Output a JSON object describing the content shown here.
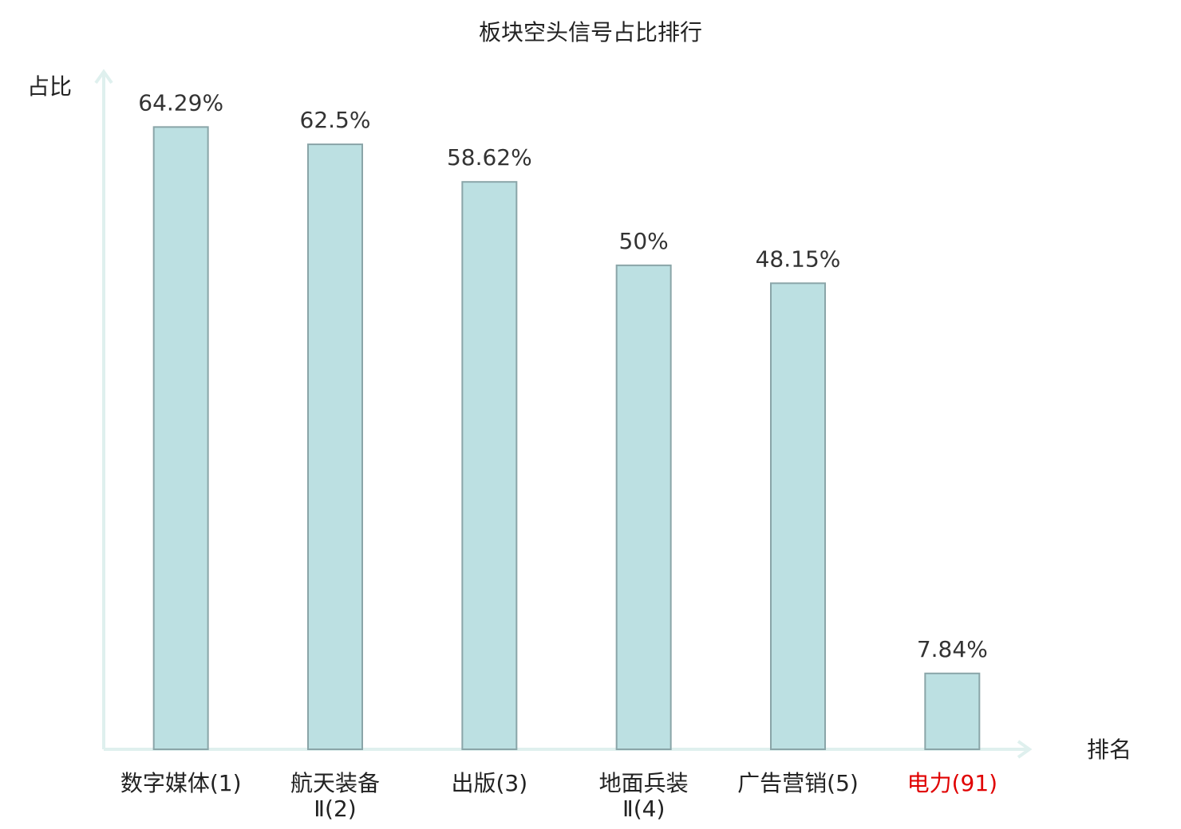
{
  "chart_data": {
    "type": "bar",
    "title": "板块空头信号占比排行",
    "y_label": "占比",
    "x_label": "排名",
    "categories": [
      [
        "数字媒体(1)"
      ],
      [
        "航天装备",
        "Ⅱ(2)"
      ],
      [
        "出版(3)"
      ],
      [
        "地面兵装",
        "Ⅱ(4)"
      ],
      [
        "广告营销(5)"
      ],
      [
        "电力(91)"
      ]
    ],
    "category_colors": [
      "#222222",
      "#222222",
      "#222222",
      "#222222",
      "#222222",
      "#e00000"
    ],
    "values": [
      64.29,
      62.5,
      58.62,
      50,
      48.15,
      7.84
    ],
    "value_labels": [
      "64.29%",
      "62.5%",
      "58.62%",
      "50%",
      "48.15%",
      "7.84%"
    ],
    "color": "#bce0e2",
    "edge_color": "#8aa5a8",
    "axis_color": "#dff0ee",
    "ylim": [
      0,
      70
    ]
  }
}
